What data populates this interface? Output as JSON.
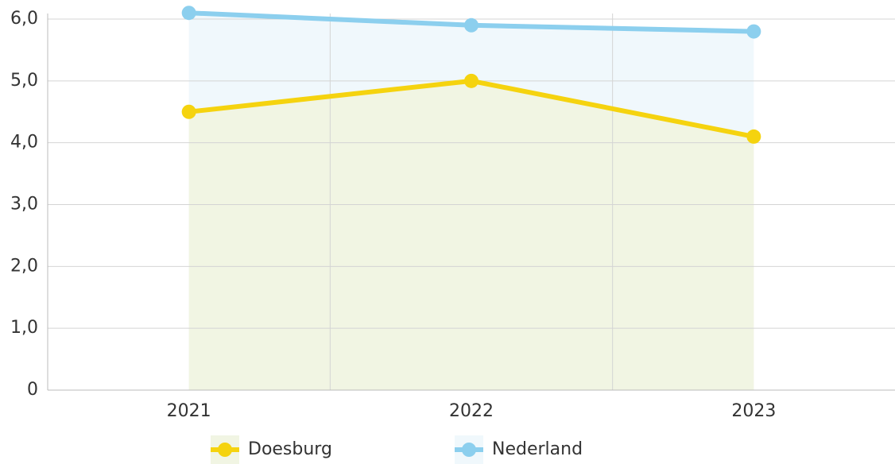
{
  "chart_data": {
    "type": "line",
    "categories": [
      "2021",
      "2022",
      "2023"
    ],
    "series": [
      {
        "name": "Doesburg",
        "color": "#f5d30f",
        "area_color": "#f1f5e3",
        "values": [
          4.5,
          5.0,
          4.1
        ]
      },
      {
        "name": "Nederland",
        "color": "#8ccfee",
        "area_color": "#f0f8fc",
        "values": [
          6.1,
          5.9,
          5.8
        ]
      }
    ],
    "ylim": [
      0,
      6
    ],
    "yticks": [
      0,
      {
        "value": 1,
        "label": "1,0"
      },
      {
        "value": 2,
        "label": "2,0"
      },
      {
        "value": 3,
        "label": "3,0"
      },
      {
        "value": 4,
        "label": "4,0"
      },
      {
        "value": 5,
        "label": "5,0"
      },
      {
        "value": 6,
        "label": "6,0"
      }
    ],
    "grid": true
  }
}
